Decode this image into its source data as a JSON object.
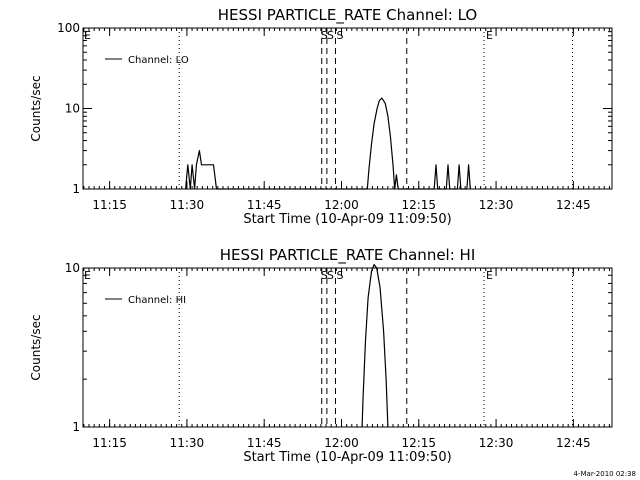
{
  "chart_data": [
    {
      "type": "line",
      "title": "HESSI PARTICLE_RATE Channel: LO",
      "xlabel": "Start Time (10-Apr-09 11:09:50)",
      "ylabel": "Counts/sec",
      "yscale": "log",
      "ylim": [
        1,
        100
      ],
      "xlim": [
        "11:09:50",
        "12:52:30"
      ],
      "xticks": [
        "11:15",
        "11:30",
        "11:45",
        "12:00",
        "12:15",
        "12:30",
        "12:45"
      ],
      "yticks": [
        "1",
        "10",
        "100"
      ],
      "legend": {
        "entries": [
          "Channel: LO"
        ],
        "placement": "top-left"
      },
      "grid": false,
      "markers": [
        {
          "label": "E",
          "time": "11:09:50",
          "style": "none"
        },
        {
          "label": "",
          "time": "11:28:30",
          "style": "dotted"
        },
        {
          "label": "S",
          "time": "11:56:10",
          "style": "dashed"
        },
        {
          "label": "S",
          "time": "11:57:10",
          "style": "dashed"
        },
        {
          "label": "S",
          "time": "11:58:50",
          "style": "dashed"
        },
        {
          "label": "",
          "time": "12:12:40",
          "style": "dashed"
        },
        {
          "label": "E",
          "time": "12:27:40",
          "style": "dotted"
        },
        {
          "label": "",
          "time": "12:44:50",
          "style": "dotted"
        }
      ],
      "series": [
        {
          "points": [
            [
              "11:29:45",
              1
            ],
            [
              "11:30:10",
              2
            ],
            [
              "11:30:40",
              1
            ],
            [
              "11:31:00",
              2
            ],
            [
              "11:31:30",
              1
            ],
            [
              "11:31:50",
              2
            ],
            [
              "11:32:25",
              3
            ],
            [
              "11:32:50",
              2
            ],
            [
              "11:35:10",
              2
            ],
            [
              "11:35:45",
              1
            ],
            [
              "12:05:00",
              1
            ],
            [
              "12:05:20",
              1.8
            ],
            [
              "12:05:50",
              3.6
            ],
            [
              "12:06:20",
              6.5
            ],
            [
              "12:06:55",
              10
            ],
            [
              "12:07:20",
              12.5
            ],
            [
              "12:07:50",
              13.5
            ],
            [
              "12:08:30",
              11.5
            ],
            [
              "12:09:00",
              8
            ],
            [
              "12:09:30",
              4.5
            ],
            [
              "12:10:00",
              2
            ],
            [
              "12:10:20",
              1
            ],
            [
              "12:10:40",
              1.5
            ],
            [
              "12:11:00",
              1
            ],
            [
              "12:18:00",
              1
            ],
            [
              "12:18:20",
              2
            ],
            [
              "12:18:40",
              1
            ],
            [
              "12:20:20",
              1
            ],
            [
              "12:20:40",
              2
            ],
            [
              "12:21:00",
              1
            ],
            [
              "12:22:30",
              1
            ],
            [
              "12:22:50",
              2
            ],
            [
              "12:23:10",
              1
            ],
            [
              "12:24:20",
              1
            ],
            [
              "12:24:40",
              2
            ],
            [
              "12:25:00",
              1
            ]
          ]
        }
      ]
    },
    {
      "type": "line",
      "title": "HESSI PARTICLE_RATE Channel: HI",
      "xlabel": "Start Time (10-Apr-09 11:09:50)",
      "ylabel": "Counts/sec",
      "yscale": "log",
      "ylim": [
        1,
        10
      ],
      "xlim": [
        "11:09:50",
        "12:52:30"
      ],
      "xticks": [
        "11:15",
        "11:30",
        "11:45",
        "12:00",
        "12:15",
        "12:30",
        "12:45"
      ],
      "yticks": [
        "1",
        "10"
      ],
      "legend": {
        "entries": [
          "Channel: HI"
        ],
        "placement": "top-left"
      },
      "grid": false,
      "markers": [
        {
          "label": "E",
          "time": "11:09:50",
          "style": "none"
        },
        {
          "label": "",
          "time": "11:28:30",
          "style": "dotted"
        },
        {
          "label": "S",
          "time": "11:56:10",
          "style": "dashed"
        },
        {
          "label": "S",
          "time": "11:57:10",
          "style": "dashed"
        },
        {
          "label": "S",
          "time": "11:58:50",
          "style": "dashed"
        },
        {
          "label": "",
          "time": "12:12:40",
          "style": "dashed"
        },
        {
          "label": "E",
          "time": "12:27:40",
          "style": "dotted"
        },
        {
          "label": "",
          "time": "12:44:50",
          "style": "dotted"
        }
      ],
      "series": [
        {
          "points": [
            [
              "12:04:00",
              1
            ],
            [
              "12:04:10",
              1.5
            ],
            [
              "12:04:40",
              3.5
            ],
            [
              "12:05:10",
              6.5
            ],
            [
              "12:05:50",
              9.5
            ],
            [
              "12:06:20",
              10.5
            ],
            [
              "12:06:50",
              10
            ],
            [
              "12:07:30",
              7.5
            ],
            [
              "12:08:10",
              4
            ],
            [
              "12:08:40",
              2
            ],
            [
              "12:09:00",
              1
            ]
          ]
        }
      ]
    }
  ],
  "footer": {
    "timestamp": "4-Mar-2010 02:38"
  }
}
